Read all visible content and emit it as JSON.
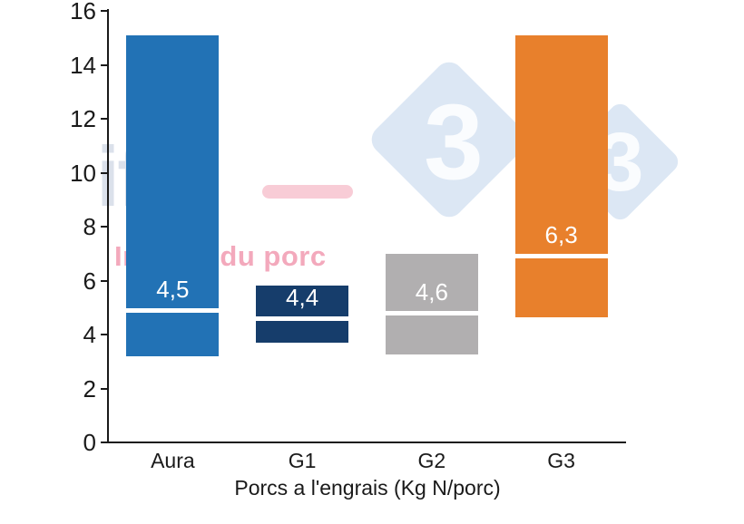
{
  "watermarks": {
    "ifip": {
      "text": "ifip",
      "subtitle": "Institut du porc",
      "text_color": "#dbe1eb",
      "subtitle_color": "#f3a9bc",
      "dash_color": "#f8ccd6"
    },
    "pig333": {
      "digit": "3",
      "diamond_color": "#dce7f4"
    }
  },
  "chart_data": {
    "type": "bar",
    "subtype": "floating-range-bars-with-marker-line",
    "title": "",
    "xlabel": "Porcs a l'engrais (Kg N/porc)",
    "ylabel": "",
    "ylim": [
      0,
      16
    ],
    "yticks": [
      0,
      2,
      4,
      6,
      8,
      10,
      12,
      14,
      16
    ],
    "grid": false,
    "legend": "none",
    "categories": [
      "Aura",
      "G1",
      "G2",
      "G3"
    ],
    "bars": [
      {
        "category": "Aura",
        "label": "4,5",
        "value": 4.5,
        "range_low": 3.2,
        "range_high": 15.1,
        "marker": 4.9,
        "color": "#2272b5"
      },
      {
        "category": "G1",
        "label": "4,4",
        "value": 4.4,
        "range_low": 3.7,
        "range_high": 5.8,
        "marker": 4.6,
        "color": "#163d6b"
      },
      {
        "category": "G2",
        "label": "4,6",
        "value": 4.6,
        "range_low": 3.25,
        "range_high": 7.0,
        "marker": 4.8,
        "color": "#b1afb0"
      },
      {
        "category": "G3",
        "label": "6,3",
        "value": 6.3,
        "range_low": 4.65,
        "range_high": 15.1,
        "marker": 6.9,
        "color": "#e8802c"
      }
    ],
    "axis_color": "#1a1a1a",
    "marker_line_color": "#ffffff",
    "value_label_color": "#ffffff"
  }
}
